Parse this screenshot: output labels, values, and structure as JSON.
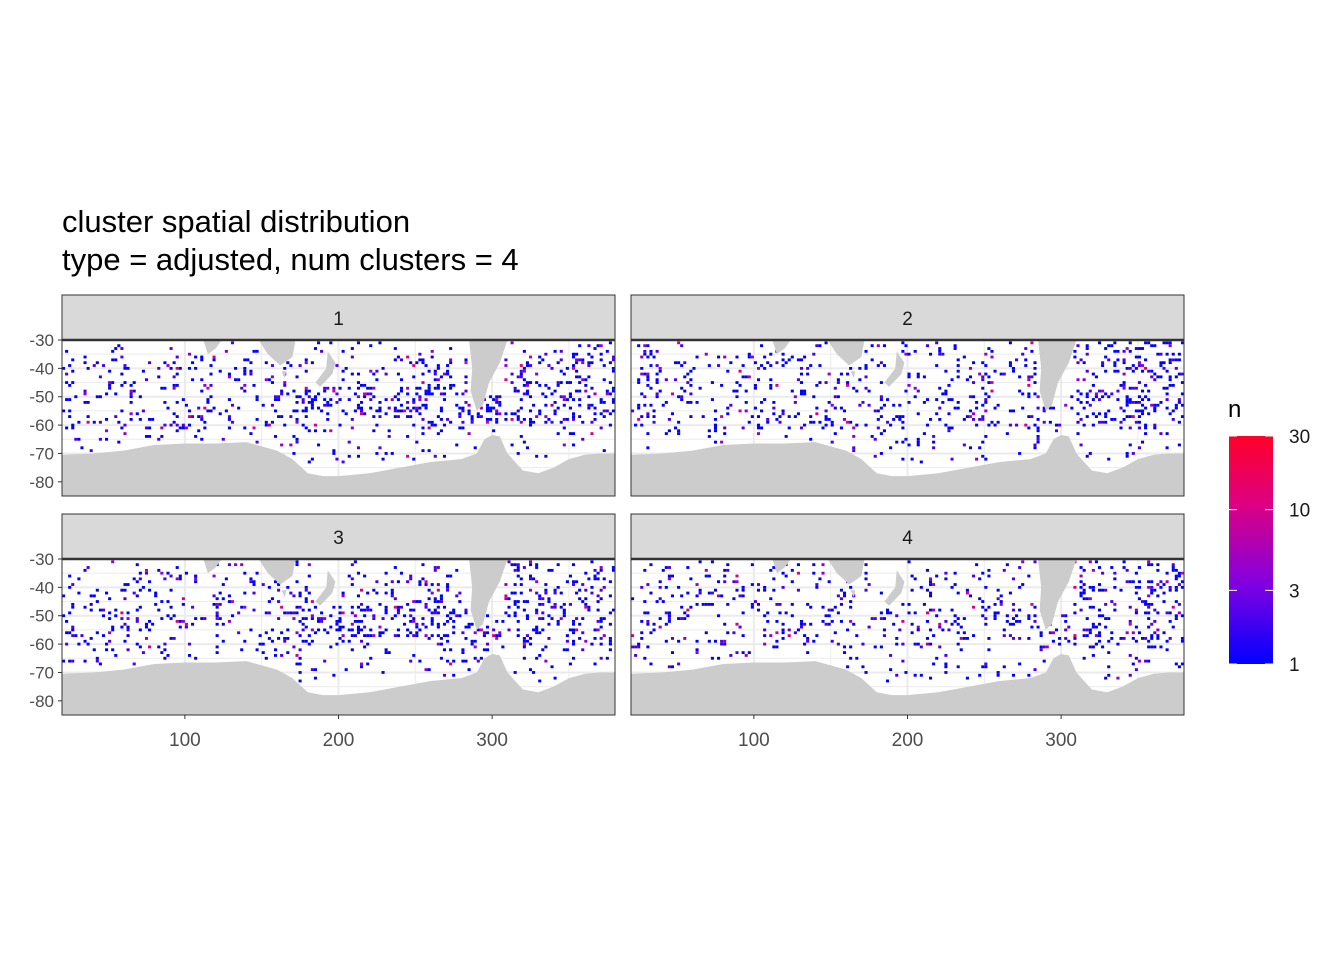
{
  "title_line1": "cluster spatial distribution",
  "title_line2": "type = adjusted, num clusters = 4",
  "chart_data": {
    "type": "heatmap",
    "facets": [
      "1",
      "2",
      "3",
      "4"
    ],
    "xlim": [
      20,
      380
    ],
    "ylim": [
      -85,
      -30
    ],
    "x_ticks": [
      100,
      200,
      300
    ],
    "y_ticks": [
      -30,
      -40,
      -50,
      -60,
      -70,
      -80
    ],
    "x_tick_labels": [
      "100",
      "200",
      "300"
    ],
    "y_tick_labels": [
      "-30",
      "-40",
      "-50",
      "-60",
      "-70",
      "-80"
    ],
    "grid": true,
    "legend": {
      "title": "n",
      "position": "right",
      "scale": "log",
      "min": 1,
      "max": 30,
      "breaks": [
        1,
        3,
        10,
        30
      ],
      "break_labels": [
        "1",
        "3",
        "10",
        "30"
      ],
      "color_low": "#0000ff",
      "color_high": "#ff0000"
    },
    "colors": {
      "land": "#cccccc",
      "strip": "#d9d9d9",
      "grid": "#ebebeb"
    },
    "note_cells": "cells per facet: [lon, lat, n] — dense scattered grid cells"
  }
}
